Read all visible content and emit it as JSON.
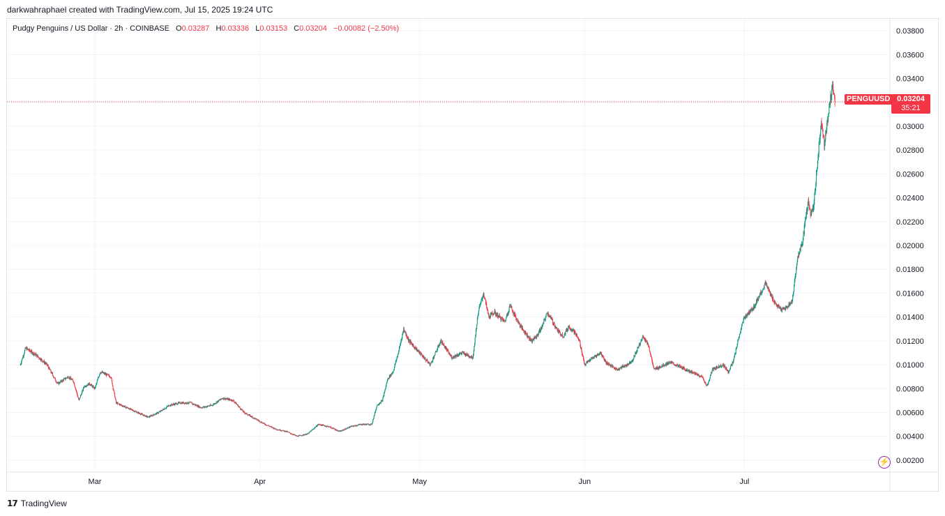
{
  "header": {
    "created_line": "darkwahraphael created with TradingView.com, Jul 15, 2025 19:24 UTC"
  },
  "legend": {
    "symbol": "Pudgy Penguins / US Dollar · 2h · COINBASE",
    "o_label": "O",
    "o_value": "0.03287",
    "h_label": "H",
    "h_value": "0.03336",
    "l_label": "L",
    "l_value": "0.03153",
    "c_label": "C",
    "c_value": "0.03204",
    "change": "−0.00082 (−2.50%)"
  },
  "price_badge": {
    "ticker": "PENGUUSD",
    "price": "0.03204",
    "countdown": "35:21"
  },
  "footer": {
    "brand": "TradingView",
    "logo_icon": "tradingview-logo-icon"
  },
  "colors": {
    "up": "#089981",
    "down": "#f23645",
    "grid": "#f0f3fa",
    "last_price_line": "#f23645"
  },
  "chart_data": {
    "type": "candlestick",
    "title": "Pudgy Penguins / US Dollar · 2h · COINBASE",
    "ylim": [
      0.001,
      0.039
    ],
    "y_ticks": [
      "0.03800",
      "0.03600",
      "0.03400",
      "0.03200",
      "0.03000",
      "0.02800",
      "0.02600",
      "0.02400",
      "0.02200",
      "0.02000",
      "0.01800",
      "0.01600",
      "0.01400",
      "0.01200",
      "0.01000",
      "0.00800",
      "0.00600",
      "0.00400",
      "0.00200"
    ],
    "x_ticks": [
      {
        "label": "Mar",
        "day": 14
      },
      {
        "label": "Apr",
        "day": 45
      },
      {
        "label": "May",
        "day": 75
      },
      {
        "label": "Jun",
        "day": 106
      },
      {
        "label": "Jul",
        "day": 136
      }
    ],
    "x_day_range": [
      -2.5,
      163.2
    ],
    "last_price": 0.03204,
    "series": [
      {
        "name": "PENGUUSD",
        "approx_close_path": [
          {
            "day": 0,
            "close": 0.01
          },
          {
            "day": 1,
            "close": 0.0114
          },
          {
            "day": 3,
            "close": 0.0108
          },
          {
            "day": 5,
            "close": 0.01
          },
          {
            "day": 7,
            "close": 0.0084
          },
          {
            "day": 9,
            "close": 0.009
          },
          {
            "day": 10,
            "close": 0.0086
          },
          {
            "day": 11,
            "close": 0.007
          },
          {
            "day": 12,
            "close": 0.0082
          },
          {
            "day": 13,
            "close": 0.0084
          },
          {
            "day": 14,
            "close": 0.008
          },
          {
            "day": 15,
            "close": 0.0094
          },
          {
            "day": 17,
            "close": 0.009
          },
          {
            "day": 18,
            "close": 0.0068
          },
          {
            "day": 20,
            "close": 0.0064
          },
          {
            "day": 22,
            "close": 0.006
          },
          {
            "day": 24,
            "close": 0.0056
          },
          {
            "day": 26,
            "close": 0.006
          },
          {
            "day": 28,
            "close": 0.0066
          },
          {
            "day": 30,
            "close": 0.0068
          },
          {
            "day": 32,
            "close": 0.0068
          },
          {
            "day": 34,
            "close": 0.0064
          },
          {
            "day": 36,
            "close": 0.0066
          },
          {
            "day": 38,
            "close": 0.0072
          },
          {
            "day": 40,
            "close": 0.007
          },
          {
            "day": 42,
            "close": 0.006
          },
          {
            "day": 44,
            "close": 0.0055
          },
          {
            "day": 46,
            "close": 0.005
          },
          {
            "day": 48,
            "close": 0.0046
          },
          {
            "day": 50,
            "close": 0.0044
          },
          {
            "day": 52,
            "close": 0.004
          },
          {
            "day": 54,
            "close": 0.0042
          },
          {
            "day": 56,
            "close": 0.005
          },
          {
            "day": 58,
            "close": 0.0048
          },
          {
            "day": 60,
            "close": 0.0044
          },
          {
            "day": 62,
            "close": 0.0048
          },
          {
            "day": 64,
            "close": 0.005
          },
          {
            "day": 66,
            "close": 0.005
          },
          {
            "day": 67,
            "close": 0.0066
          },
          {
            "day": 68,
            "close": 0.007
          },
          {
            "day": 69,
            "close": 0.0088
          },
          {
            "day": 70,
            "close": 0.0094
          },
          {
            "day": 71,
            "close": 0.011
          },
          {
            "day": 72,
            "close": 0.013
          },
          {
            "day": 73,
            "close": 0.012
          },
          {
            "day": 75,
            "close": 0.011
          },
          {
            "day": 77,
            "close": 0.01
          },
          {
            "day": 79,
            "close": 0.012
          },
          {
            "day": 81,
            "close": 0.0106
          },
          {
            "day": 83,
            "close": 0.011
          },
          {
            "day": 85,
            "close": 0.0106
          },
          {
            "day": 86,
            "close": 0.0144
          },
          {
            "day": 87,
            "close": 0.016
          },
          {
            "day": 88,
            "close": 0.014
          },
          {
            "day": 89,
            "close": 0.0144
          },
          {
            "day": 90,
            "close": 0.014
          },
          {
            "day": 91,
            "close": 0.0136
          },
          {
            "day": 92,
            "close": 0.015
          },
          {
            "day": 93,
            "close": 0.014
          },
          {
            "day": 94,
            "close": 0.0132
          },
          {
            "day": 95,
            "close": 0.0126
          },
          {
            "day": 96,
            "close": 0.012
          },
          {
            "day": 97,
            "close": 0.0124
          },
          {
            "day": 98,
            "close": 0.0132
          },
          {
            "day": 99,
            "close": 0.0144
          },
          {
            "day": 100,
            "close": 0.0136
          },
          {
            "day": 101,
            "close": 0.0128
          },
          {
            "day": 102,
            "close": 0.0124
          },
          {
            "day": 103,
            "close": 0.0132
          },
          {
            "day": 104,
            "close": 0.0128
          },
          {
            "day": 105,
            "close": 0.012
          },
          {
            "day": 106,
            "close": 0.01
          },
          {
            "day": 107,
            "close": 0.0104
          },
          {
            "day": 109,
            "close": 0.011
          },
          {
            "day": 110,
            "close": 0.0102
          },
          {
            "day": 112,
            "close": 0.0096
          },
          {
            "day": 114,
            "close": 0.01
          },
          {
            "day": 115,
            "close": 0.0104
          },
          {
            "day": 117,
            "close": 0.0124
          },
          {
            "day": 118,
            "close": 0.0116
          },
          {
            "day": 119,
            "close": 0.0096
          },
          {
            "day": 120,
            "close": 0.0098
          },
          {
            "day": 122,
            "close": 0.0102
          },
          {
            "day": 124,
            "close": 0.0098
          },
          {
            "day": 126,
            "close": 0.0094
          },
          {
            "day": 128,
            "close": 0.009
          },
          {
            "day": 129,
            "close": 0.0082
          },
          {
            "day": 130,
            "close": 0.0096
          },
          {
            "day": 132,
            "close": 0.01
          },
          {
            "day": 133,
            "close": 0.0094
          },
          {
            "day": 134,
            "close": 0.0104
          },
          {
            "day": 135,
            "close": 0.0124
          },
          {
            "day": 136,
            "close": 0.014
          },
          {
            "day": 137,
            "close": 0.0144
          },
          {
            "day": 138,
            "close": 0.015
          },
          {
            "day": 139,
            "close": 0.016
          },
          {
            "day": 140,
            "close": 0.0168
          },
          {
            "day": 141,
            "close": 0.0158
          },
          {
            "day": 142,
            "close": 0.015
          },
          {
            "day": 143,
            "close": 0.0146
          },
          {
            "day": 144,
            "close": 0.0148
          },
          {
            "day": 145,
            "close": 0.0154
          },
          {
            "day": 146,
            "close": 0.019
          },
          {
            "day": 147,
            "close": 0.0204
          },
          {
            "day": 147.5,
            "close": 0.0224
          },
          {
            "day": 148,
            "close": 0.0236
          },
          {
            "day": 148.5,
            "close": 0.0226
          },
          {
            "day": 149,
            "close": 0.0232
          },
          {
            "day": 150,
            "close": 0.0284
          },
          {
            "day": 150.5,
            "close": 0.0304
          },
          {
            "day": 151,
            "close": 0.0286
          },
          {
            "day": 151.5,
            "close": 0.03
          },
          {
            "day": 152,
            "close": 0.0318
          },
          {
            "day": 152.5,
            "close": 0.0334
          },
          {
            "day": 153,
            "close": 0.03204
          }
        ]
      }
    ]
  }
}
